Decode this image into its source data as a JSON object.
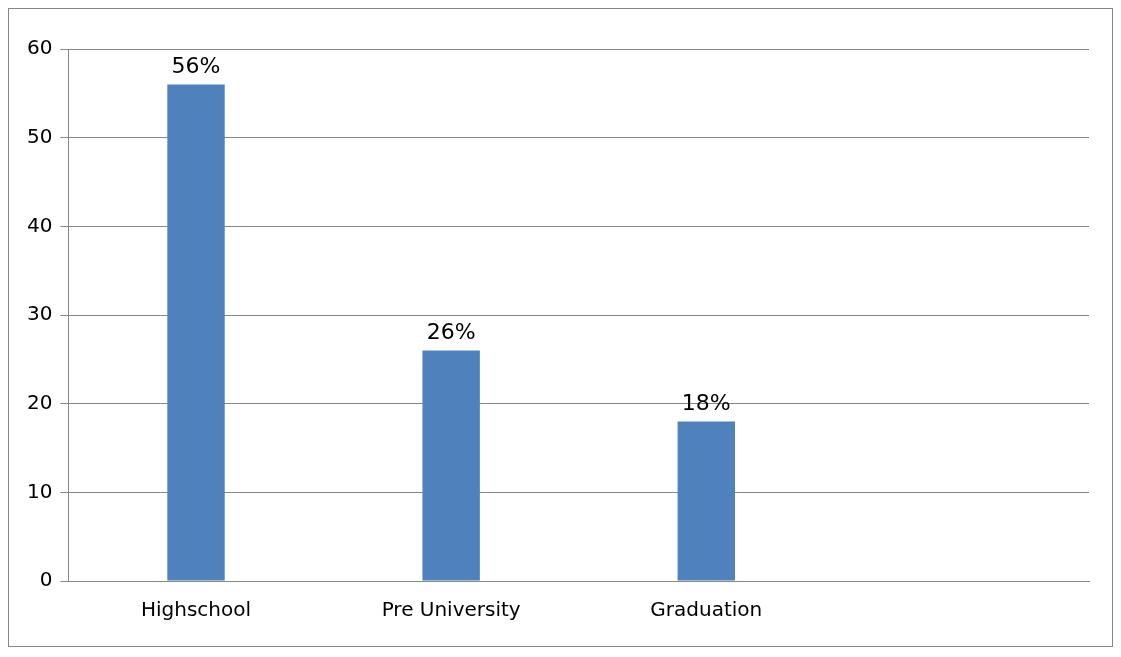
{
  "chart_data": {
    "type": "bar",
    "categories": [
      "Highschool",
      "Pre University",
      "Graduation",
      null
    ],
    "values": [
      56,
      26,
      18,
      null
    ],
    "value_labels": [
      "56%",
      "26%",
      "18%",
      null
    ],
    "color": "#4f81bd",
    "ylim": [
      0,
      60
    ],
    "yticks": [
      0,
      10,
      20,
      30,
      40,
      50,
      60
    ],
    "grid": "y",
    "legend": false
  }
}
